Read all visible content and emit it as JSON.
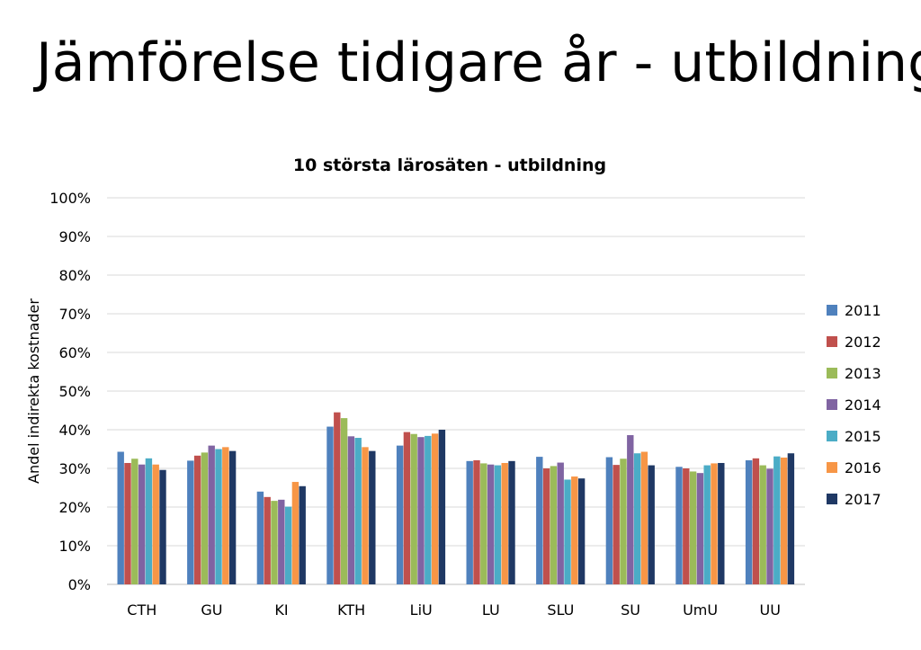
{
  "slide": {
    "title": "Jämförelse tidigare år - utbildning"
  },
  "chart_data": {
    "type": "bar",
    "title": "10 största lärosäten - utbildning",
    "xlabel": "",
    "ylabel": "Andel indirekta kostnader",
    "ylim": [
      0,
      100
    ],
    "yticks": [
      0,
      10,
      20,
      30,
      40,
      50,
      60,
      70,
      80,
      90,
      100
    ],
    "ytick_labels": [
      "0%",
      "10%",
      "20%",
      "30%",
      "40%",
      "50%",
      "60%",
      "70%",
      "80%",
      "90%",
      "100%"
    ],
    "grid": true,
    "legend_position": "right",
    "categories": [
      "CTH",
      "GU",
      "KI",
      "KTH",
      "LiU",
      "LU",
      "SLU",
      "SU",
      "UmU",
      "UU"
    ],
    "series": [
      {
        "name": "2011",
        "color": "#4F81BD",
        "values": [
          34.3,
          32.0,
          24.0,
          40.8,
          35.9,
          31.9,
          33.0,
          32.9,
          30.4,
          32.1
        ]
      },
      {
        "name": "2012",
        "color": "#C0504D",
        "values": [
          31.4,
          33.3,
          22.6,
          44.5,
          39.4,
          32.1,
          30.0,
          30.9,
          30.0,
          32.6
        ]
      },
      {
        "name": "2013",
        "color": "#9BBB59",
        "values": [
          32.5,
          34.1,
          21.6,
          43.0,
          38.9,
          31.3,
          30.6,
          32.5,
          29.2,
          30.8
        ]
      },
      {
        "name": "2014",
        "color": "#8064A2",
        "values": [
          31.0,
          35.9,
          21.9,
          38.3,
          38.1,
          31.0,
          31.5,
          38.6,
          28.8,
          29.9
        ]
      },
      {
        "name": "2015",
        "color": "#4BACC6",
        "values": [
          32.6,
          35.0,
          20.1,
          37.9,
          38.4,
          30.8,
          27.1,
          33.9,
          30.8,
          33.1
        ]
      },
      {
        "name": "2016",
        "color": "#F79646",
        "values": [
          31.0,
          35.5,
          26.5,
          35.5,
          39.0,
          31.4,
          27.9,
          34.3,
          31.3,
          32.8
        ]
      },
      {
        "name": "2017",
        "color": "#1F3864",
        "values": [
          29.6,
          34.5,
          25.4,
          34.5,
          40.0,
          31.9,
          27.4,
          30.8,
          31.4,
          33.9
        ]
      }
    ]
  }
}
